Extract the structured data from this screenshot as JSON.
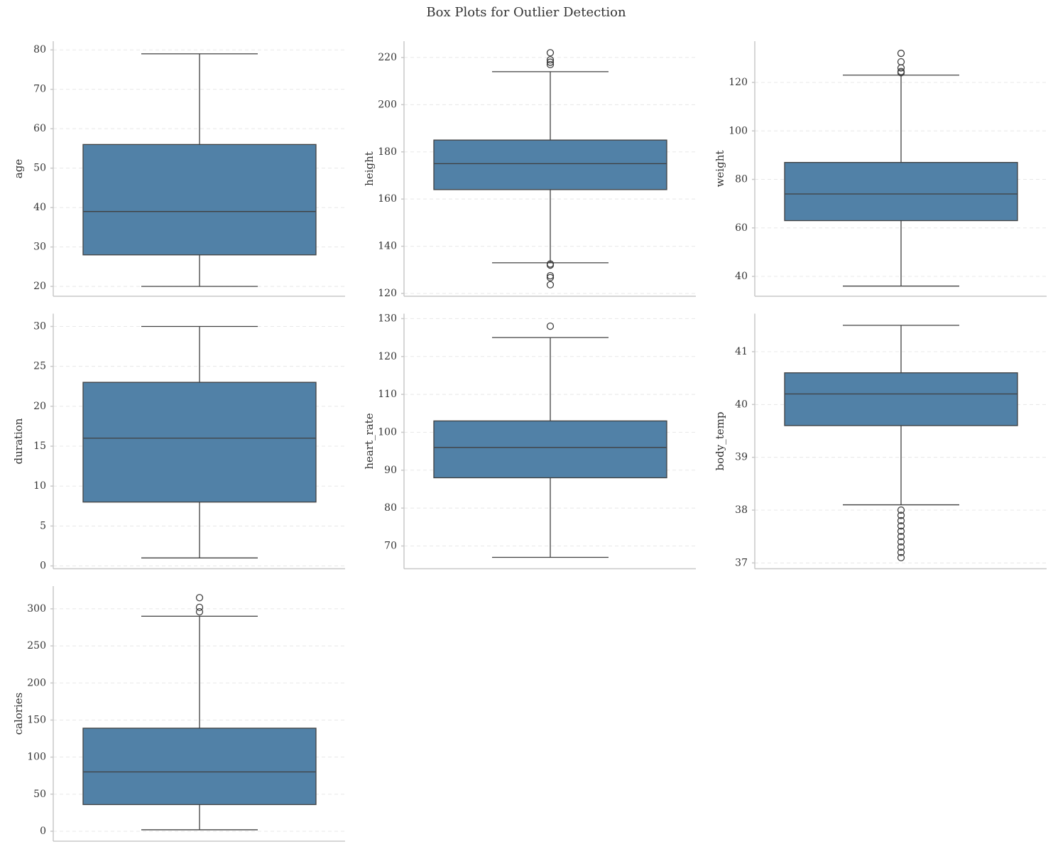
{
  "title": "Box Plots for Outlier Detection",
  "chart_data": [
    {
      "type": "box",
      "ylabel": "age",
      "color": "#5181a7",
      "grid": true,
      "ylim": [
        17.5,
        82.2
      ],
      "yticks": [
        20,
        30,
        40,
        50,
        60,
        70,
        80
      ],
      "whisker_low": 20,
      "q1": 28,
      "median": 39,
      "q3": 56,
      "whisker_high": 79,
      "outliers": []
    },
    {
      "type": "box",
      "ylabel": "height",
      "color": "#5181a7",
      "grid": true,
      "ylim": [
        118.8,
        226.9
      ],
      "yticks": [
        120,
        140,
        160,
        180,
        200,
        220
      ],
      "whisker_low": 133,
      "q1": 164,
      "median": 175,
      "q3": 185,
      "whisker_high": 214,
      "outliers": [
        222,
        219,
        218,
        217,
        132.5,
        132,
        127.5,
        126.7,
        123.7
      ]
    },
    {
      "type": "box",
      "ylabel": "weight",
      "color": "#5181a7",
      "grid": true,
      "ylim": [
        31.8,
        137
      ],
      "yticks": [
        40,
        60,
        80,
        100,
        120
      ],
      "whisker_low": 36,
      "q1": 63,
      "median": 74,
      "q3": 87,
      "whisker_high": 123,
      "outliers": [
        132,
        128.5,
        126,
        124.5,
        124
      ]
    },
    {
      "type": "box",
      "ylabel": "duration",
      "color": "#5181a7",
      "grid": true,
      "ylim": [
        -0.35,
        31.6
      ],
      "yticks": [
        0,
        5,
        10,
        15,
        20,
        25,
        30
      ],
      "whisker_low": 1,
      "q1": 8,
      "median": 16,
      "q3": 23,
      "whisker_high": 30,
      "outliers": []
    },
    {
      "type": "box",
      "ylabel": "heart_rate",
      "color": "#5181a7",
      "grid": true,
      "ylim": [
        64,
        131.3
      ],
      "yticks": [
        70,
        80,
        90,
        100,
        110,
        120,
        130
      ],
      "whisker_low": 67,
      "q1": 88,
      "median": 96,
      "q3": 103,
      "whisker_high": 125,
      "outliers": [
        128
      ]
    },
    {
      "type": "box",
      "ylabel": "body_temp",
      "color": "#5181a7",
      "grid": true,
      "ylim": [
        36.89,
        41.72
      ],
      "yticks": [
        37,
        38,
        39,
        40,
        41
      ],
      "whisker_low": 38.1,
      "q1": 39.6,
      "median": 40.2,
      "q3": 40.6,
      "whisker_high": 41.5,
      "outliers": [
        38,
        37.9,
        37.8,
        37.7,
        37.6,
        37.5,
        37.4,
        37.3,
        37.2,
        37.1
      ]
    },
    {
      "type": "box",
      "ylabel": "calories",
      "color": "#5181a7",
      "grid": true,
      "ylim": [
        -13.4,
        330.6
      ],
      "yticks": [
        0,
        50,
        100,
        150,
        200,
        250,
        300
      ],
      "whisker_low": 2,
      "q1": 36,
      "median": 80,
      "q3": 139,
      "whisker_high": 290,
      "outliers": [
        315,
        302,
        296
      ]
    }
  ]
}
